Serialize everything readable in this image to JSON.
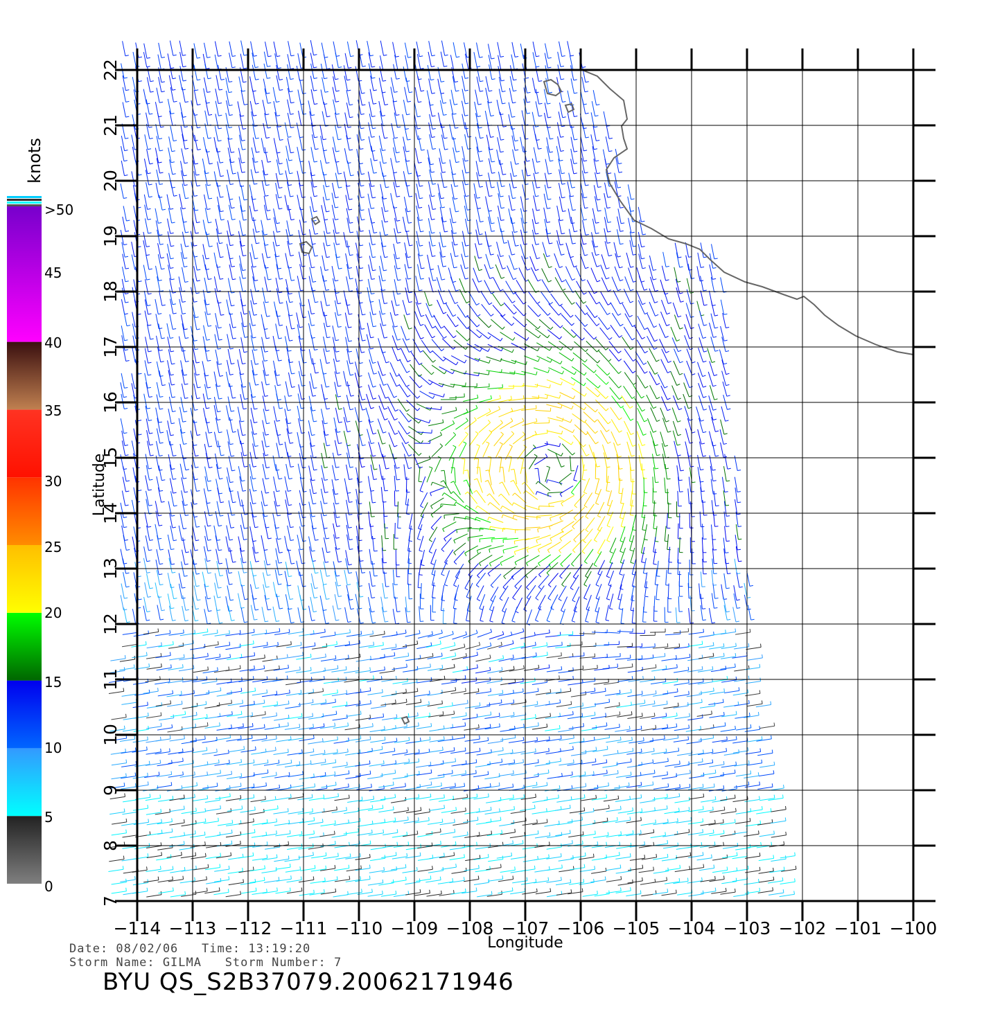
{
  "chart_data": {
    "type": "wind-vector-map",
    "xlabel": "Longitude",
    "ylabel": "Latitude",
    "x_ticks": [
      "-114",
      "-113",
      "-112",
      "-111",
      "-110",
      "-109",
      "-108",
      "-107",
      "-106",
      "-105",
      "-104",
      "-103",
      "-102",
      "-101",
      "-100"
    ],
    "y_ticks": [
      "7",
      "8",
      "9",
      "10",
      "11",
      "12",
      "13",
      "14",
      "15",
      "16",
      "17",
      "18",
      "19",
      "20",
      "21",
      "22"
    ],
    "xlim": [
      -114,
      -100
    ],
    "ylim": [
      7,
      22
    ],
    "grid": true,
    "storm_center": {
      "lon": -106.5,
      "lat": 14.8
    },
    "colorbar": {
      "title": "knots",
      "labels": [
        "0",
        "5",
        "10",
        "15",
        "20",
        "25",
        "30",
        "35",
        "40",
        "45",
        ">50"
      ],
      "bands": [
        {
          "from": 0,
          "to": 5,
          "colors": [
            "#7f7f7f",
            "#222222"
          ]
        },
        {
          "from": 5,
          "to": 10,
          "colors": [
            "#00ffff",
            "#3399ff"
          ]
        },
        {
          "from": 10,
          "to": 15,
          "colors": [
            "#0066ff",
            "#0000ee"
          ]
        },
        {
          "from": 15,
          "to": 20,
          "colors": [
            "#006600",
            "#00ff00"
          ]
        },
        {
          "from": 20,
          "to": 25,
          "colors": [
            "#ffff00",
            "#ffbf00"
          ]
        },
        {
          "from": 25,
          "to": 30,
          "colors": [
            "#ff8c00",
            "#ff3300"
          ]
        },
        {
          "from": 30,
          "to": 35,
          "colors": [
            "#ff1100",
            "#ff3322"
          ]
        },
        {
          "from": 35,
          "to": 40,
          "colors": [
            "#c08050",
            "#3a0f0f"
          ]
        },
        {
          "from": 40,
          "to": 50,
          "colors": [
            "#ff00ff",
            "#7700cc"
          ]
        }
      ]
    }
  },
  "info": {
    "date_time": "Date: 08/02/06   Time: 13:19:20",
    "storm": "Storm Name: GILMA   Storm Number: 7",
    "product": "BYU QS_S2B37079.20062171946"
  },
  "colors": {
    "coast": "#666666",
    "grid": "#000000"
  }
}
